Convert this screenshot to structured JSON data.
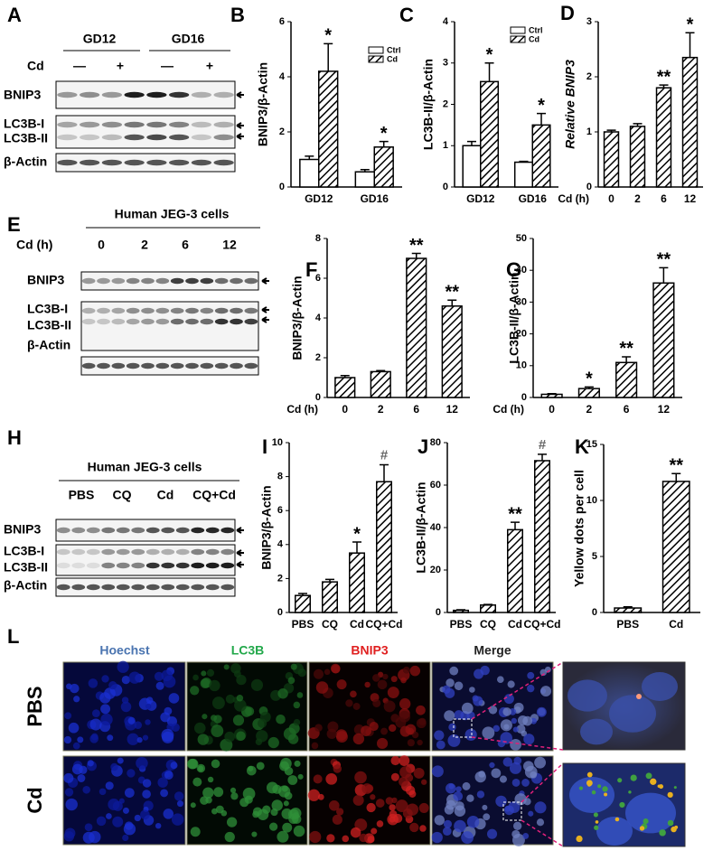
{
  "blots": [
    {
      "panel": "A",
      "column_groups": [
        "GD12",
        "GD16"
      ],
      "condition_label": "Cd",
      "conditions": [
        "—",
        "+",
        "—",
        "+"
      ],
      "rows": [
        "BNIP3",
        "LC3B-I",
        "LC3B-II",
        "β-Actin"
      ]
    },
    {
      "panel": "E",
      "title": "Human JEG-3 cells",
      "condition_label": "Cd (h)",
      "conditions": [
        "0",
        "2",
        "6",
        "12"
      ],
      "rows": [
        "BNIP3",
        "LC3B-I",
        "LC3B-II",
        "β-Actin"
      ]
    },
    {
      "panel": "H",
      "title": "Human JEG-3 cells",
      "conditions": [
        "PBS",
        "CQ",
        "Cd",
        "CQ+Cd"
      ],
      "rows": [
        "BNIP3",
        "LC3B-I",
        "LC3B-II",
        "β-Actin"
      ]
    }
  ],
  "imaging": {
    "panel": "L",
    "channels": [
      "Hoechst",
      "LC3B",
      "BNIP3",
      "Merge"
    ],
    "rows": [
      "PBS",
      "Cd"
    ]
  },
  "chart_data": [
    {
      "type": "bar",
      "panel": "B",
      "ylabel": "BNIP3/β-Actin",
      "categories": [
        "GD12",
        "GD16"
      ],
      "ylim": [
        0,
        6
      ],
      "yticks": [
        0,
        2,
        4,
        6
      ],
      "series": [
        {
          "name": "Ctrl",
          "color": "#ffffff",
          "hatch": false,
          "values": [
            1.0,
            0.55
          ],
          "errors": [
            0.12,
            0.08
          ],
          "annotations": [
            null,
            null
          ]
        },
        {
          "name": "Cd",
          "color": "#000000",
          "hatch": true,
          "values": [
            4.2,
            1.45
          ],
          "errors": [
            1.0,
            0.2
          ],
          "annotations": [
            "*",
            "*"
          ]
        }
      ]
    },
    {
      "type": "bar",
      "panel": "C",
      "ylabel": "LC3B-II/β-Actin",
      "categories": [
        "GD12",
        "GD16"
      ],
      "ylim": [
        0,
        4
      ],
      "yticks": [
        0,
        1,
        2,
        3,
        4
      ],
      "series": [
        {
          "name": "Ctrl",
          "color": "#ffffff",
          "hatch": false,
          "values": [
            1.0,
            0.6
          ],
          "errors": [
            0.1,
            0.02
          ],
          "annotations": [
            null,
            null
          ]
        },
        {
          "name": "Cd",
          "color": "#000000",
          "hatch": true,
          "values": [
            2.55,
            1.5
          ],
          "errors": [
            0.45,
            0.28
          ],
          "annotations": [
            "*",
            "*"
          ]
        }
      ]
    },
    {
      "type": "bar",
      "panel": "D",
      "ylabel": "Relative BNIP3",
      "xlabel": "Cd (h)",
      "categories": [
        "0",
        "2",
        "6",
        "12"
      ],
      "ylim": [
        0,
        3
      ],
      "yticks": [
        0,
        1,
        2,
        3
      ],
      "color": "#000000",
      "hatch": true,
      "values": [
        1.0,
        1.1,
        1.8,
        2.35
      ],
      "errors": [
        0.03,
        0.05,
        0.05,
        0.45
      ],
      "annotations": [
        null,
        null,
        "**",
        "*"
      ]
    },
    {
      "type": "bar",
      "panel": "F",
      "ylabel": "BNIP3/β-Actin",
      "xlabel": "Cd (h)",
      "categories": [
        "0",
        "2",
        "6",
        "12"
      ],
      "ylim": [
        0,
        8
      ],
      "yticks": [
        0,
        2,
        4,
        6,
        8
      ],
      "color": "#000000",
      "hatch": true,
      "values": [
        1.0,
        1.3,
        7.0,
        4.6
      ],
      "errors": [
        0.1,
        0.05,
        0.25,
        0.3
      ],
      "annotations": [
        null,
        null,
        "**",
        "**"
      ]
    },
    {
      "type": "bar",
      "panel": "G",
      "ylabel": "LC3B-II/β-Actin",
      "xlabel": "Cd (h)",
      "categories": [
        "0",
        "2",
        "6",
        "12"
      ],
      "ylim": [
        0,
        50
      ],
      "yticks": [
        0,
        10,
        20,
        30,
        40,
        50
      ],
      "color": "#000000",
      "hatch": true,
      "values": [
        1.0,
        2.8,
        11,
        36
      ],
      "errors": [
        0.2,
        0.5,
        1.8,
        4.8
      ],
      "annotations": [
        null,
        "*",
        "**",
        "**"
      ]
    },
    {
      "type": "bar",
      "panel": "I",
      "ylabel": "BNIP3/β-Actin",
      "categories": [
        "PBS",
        "CQ",
        "Cd",
        "CQ+Cd"
      ],
      "ylim": [
        0,
        10
      ],
      "yticks": [
        0,
        2,
        4,
        6,
        8,
        10
      ],
      "color": "#000000",
      "hatch": true,
      "values": [
        1.0,
        1.8,
        3.5,
        7.7
      ],
      "errors": [
        0.12,
        0.15,
        0.65,
        1.0
      ],
      "annotations": [
        null,
        null,
        "*",
        "#"
      ]
    },
    {
      "type": "bar",
      "panel": "J",
      "ylabel": "LC3B-II/β-Actin",
      "categories": [
        "PBS",
        "CQ",
        "Cd",
        "CQ+Cd"
      ],
      "ylim": [
        0,
        80
      ],
      "yticks": [
        0,
        20,
        40,
        60,
        80
      ],
      "color": "#000000",
      "hatch": true,
      "values": [
        1.0,
        3.5,
        39,
        71.5
      ],
      "errors": [
        0.3,
        0.3,
        3.5,
        3
      ],
      "annotations": [
        null,
        null,
        "**",
        "#"
      ]
    },
    {
      "type": "bar",
      "panel": "K",
      "ylabel": "Yellow dots per cell",
      "categories": [
        "PBS",
        "Cd"
      ],
      "ylim": [
        0,
        15
      ],
      "yticks": [
        0,
        5,
        10,
        15
      ],
      "color": "#000000",
      "hatch": true,
      "values": [
        0.4,
        11.7
      ],
      "errors": [
        0.1,
        0.7
      ],
      "annotations": [
        null,
        "**"
      ]
    }
  ]
}
